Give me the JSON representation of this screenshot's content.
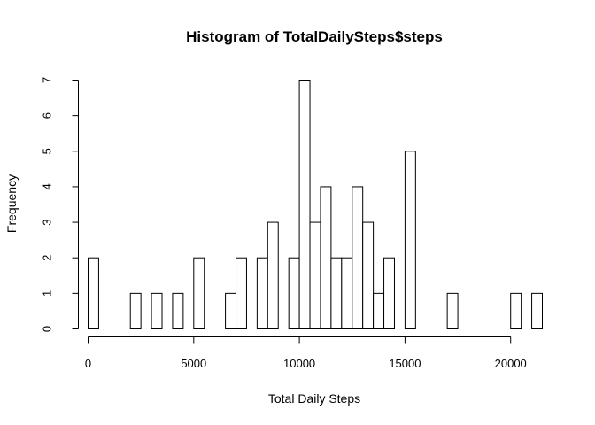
{
  "chart_data": {
    "type": "bar",
    "title": "Histogram of TotalDailySteps$steps",
    "xlabel": "Total Daily Steps",
    "ylabel": "Frequency",
    "bin_width": 500,
    "bin_start": 0,
    "xlim": [
      0,
      21500
    ],
    "ylim": [
      0,
      7
    ],
    "x_ticks": [
      0,
      5000,
      10000,
      15000,
      20000
    ],
    "y_ticks": [
      0,
      1,
      2,
      3,
      4,
      5,
      6,
      7
    ],
    "values": [
      2,
      0,
      0,
      0,
      1,
      0,
      1,
      0,
      1,
      0,
      2,
      0,
      0,
      1,
      2,
      0,
      2,
      3,
      0,
      2,
      7,
      3,
      4,
      2,
      2,
      4,
      3,
      1,
      2,
      0,
      5,
      0,
      0,
      0,
      1,
      0,
      0,
      0,
      0,
      0,
      1,
      0,
      1
    ]
  }
}
